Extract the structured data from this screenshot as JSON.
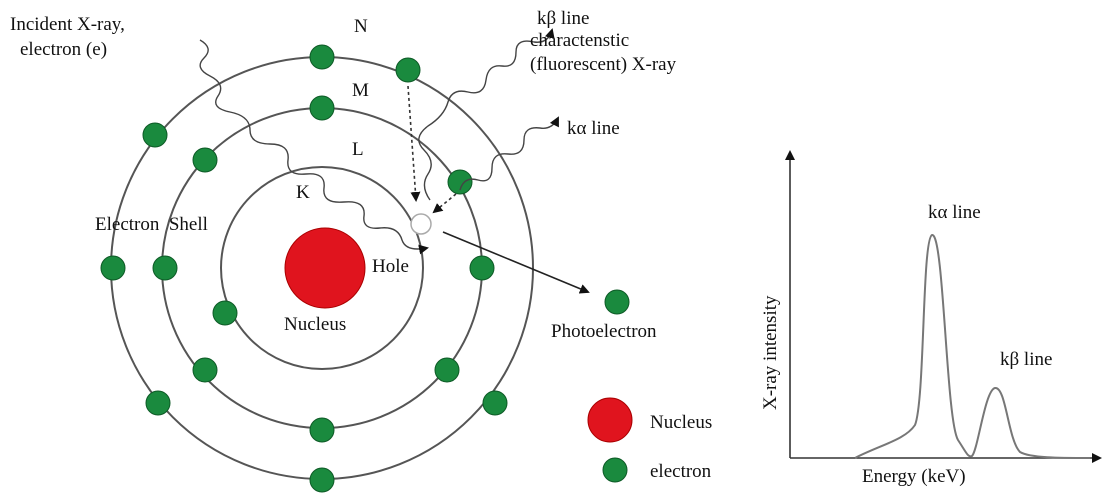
{
  "atom": {
    "incident": [
      "Incident X-ray,",
      "electron (e)"
    ],
    "emission": [
      "kβ line",
      "charactenstic",
      "(fluorescent) X-ray"
    ],
    "k_alpha": "kα line",
    "shells": [
      "N",
      "M",
      "L",
      "K"
    ],
    "electron_shell": "Electron  Shell",
    "hole": "Hole",
    "nucleus": "Nucleus",
    "photoelectron": "Photoelectron"
  },
  "legend": {
    "nucleus": "Nucleus",
    "electron": "electron"
  },
  "spectrum": {
    "peak_alpha": "kα line",
    "peak_beta": "kβ line",
    "y_label": "X-ray intensity",
    "x_label": "Energy (keV)"
  }
}
